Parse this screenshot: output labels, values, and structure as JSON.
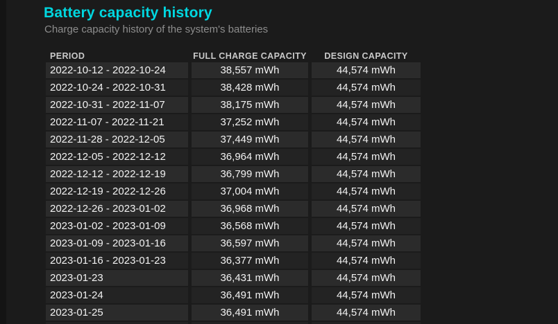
{
  "page": {
    "title": "Battery capacity history",
    "subtitle": "Charge capacity history of the system's batteries"
  },
  "colors": {
    "accent": "#00d7e0",
    "background": "#1b1b1b",
    "left_edge": "#141414",
    "row_light": "#2b2b2b",
    "row_dark": "#232323",
    "header_text": "#c9c9c9",
    "cell_text": "#f2f2f2",
    "subtitle_text": "#8d8d8d"
  },
  "table": {
    "columns": [
      "PERIOD",
      "FULL CHARGE CAPACITY",
      "DESIGN CAPACITY"
    ],
    "rows": [
      {
        "period": "2022-10-12 - 2022-10-24",
        "full_charge": "38,557 mWh",
        "design": "44,574 mWh"
      },
      {
        "period": "2022-10-24 - 2022-10-31",
        "full_charge": "38,428 mWh",
        "design": "44,574 mWh"
      },
      {
        "period": "2022-10-31 - 2022-11-07",
        "full_charge": "38,175 mWh",
        "design": "44,574 mWh"
      },
      {
        "period": "2022-11-07 - 2022-11-21",
        "full_charge": "37,252 mWh",
        "design": "44,574 mWh"
      },
      {
        "period": "2022-11-28 - 2022-12-05",
        "full_charge": "37,449 mWh",
        "design": "44,574 mWh"
      },
      {
        "period": "2022-12-05 - 2022-12-12",
        "full_charge": "36,964 mWh",
        "design": "44,574 mWh"
      },
      {
        "period": "2022-12-12 - 2022-12-19",
        "full_charge": "36,799 mWh",
        "design": "44,574 mWh"
      },
      {
        "period": "2022-12-19 - 2022-12-26",
        "full_charge": "37,004 mWh",
        "design": "44,574 mWh"
      },
      {
        "period": "2022-12-26 - 2023-01-02",
        "full_charge": "36,968 mWh",
        "design": "44,574 mWh"
      },
      {
        "period": "2023-01-02 - 2023-01-09",
        "full_charge": "36,568 mWh",
        "design": "44,574 mWh"
      },
      {
        "period": "2023-01-09 - 2023-01-16",
        "full_charge": "36,597 mWh",
        "design": "44,574 mWh"
      },
      {
        "period": "2023-01-16 - 2023-01-23",
        "full_charge": "36,377 mWh",
        "design": "44,574 mWh"
      },
      {
        "period": "2023-01-23",
        "full_charge": "36,431 mWh",
        "design": "44,574 mWh"
      },
      {
        "period": "2023-01-24",
        "full_charge": "36,491 mWh",
        "design": "44,574 mWh"
      },
      {
        "period": "2023-01-25",
        "full_charge": "36,491 mWh",
        "design": "44,574 mWh"
      }
    ]
  }
}
